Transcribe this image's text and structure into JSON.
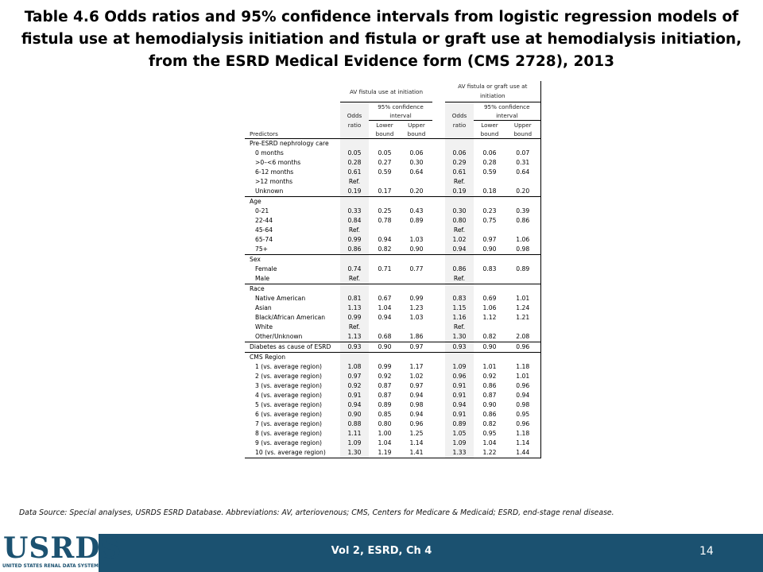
{
  "title": "Table 4.6  Odds ratios and 95% confidence intervals from logistic regression models of fistula use at hemodialysis initiation and fistula or graft use at hemodialysis initiation, from the ESRD Medical Evidence form (CMS 2728), 2013",
  "table": {
    "group1": "AV fistula use at initiation",
    "group2": "AV fistula or graft use at initiation",
    "ci_label_1": "95% confidence",
    "ci_label_2": "interval",
    "odds_1": "Odds",
    "odds_2": "ratio",
    "predictors": "Predictors",
    "lower_1": "Lower",
    "lower_2": "bound",
    "upper_1": "Upper",
    "upper_2": "bound",
    "rows": [
      {
        "label": "Pre-ESRD nephrology care",
        "type": "group",
        "v": [
          "",
          "",
          "",
          "",
          "",
          ""
        ]
      },
      {
        "label": "0 months",
        "type": "item",
        "v": [
          "0.05",
          "0.05",
          "0.06",
          "0.06",
          "0.06",
          "0.07"
        ]
      },
      {
        "label": ">0–<6 months",
        "type": "item",
        "v": [
          "0.28",
          "0.27",
          "0.30",
          "0.29",
          "0.28",
          "0.31"
        ]
      },
      {
        "label": "6-12 months",
        "type": "item",
        "v": [
          "0.61",
          "0.59",
          "0.64",
          "0.61",
          "0.59",
          "0.64"
        ]
      },
      {
        "label": ">12 months",
        "type": "item",
        "v": [
          "Ref.",
          "",
          "",
          "Ref.",
          "",
          ""
        ]
      },
      {
        "label": "Unknown",
        "type": "item",
        "v": [
          "0.19",
          "0.17",
          "0.20",
          "0.19",
          "0.18",
          "0.20"
        ]
      },
      {
        "label": "Age",
        "type": "group",
        "v": [
          "",
          "",
          "",
          "",
          "",
          ""
        ]
      },
      {
        "label": "0-21",
        "type": "item",
        "v": [
          "0.33",
          "0.25",
          "0.43",
          "0.30",
          "0.23",
          "0.39"
        ]
      },
      {
        "label": "22-44",
        "type": "item",
        "v": [
          "0.84",
          "0.78",
          "0.89",
          "0.80",
          "0.75",
          "0.86"
        ]
      },
      {
        "label": "45-64",
        "type": "item",
        "v": [
          "Ref.",
          "",
          "",
          "Ref.",
          "",
          ""
        ]
      },
      {
        "label": "65-74",
        "type": "item",
        "v": [
          "0.99",
          "0.94",
          "1.03",
          "1.02",
          "0.97",
          "1.06"
        ]
      },
      {
        "label": "75+",
        "type": "item",
        "v": [
          "0.86",
          "0.82",
          "0.90",
          "0.94",
          "0.90",
          "0.98"
        ]
      },
      {
        "label": "Sex",
        "type": "group",
        "v": [
          "",
          "",
          "",
          "",
          "",
          ""
        ]
      },
      {
        "label": "Female",
        "type": "item",
        "v": [
          "0.74",
          "0.71",
          "0.77",
          "0.86",
          "0.83",
          "0.89"
        ]
      },
      {
        "label": "Male",
        "type": "item",
        "v": [
          "Ref.",
          "",
          "",
          "Ref.",
          "",
          ""
        ]
      },
      {
        "label": "Race",
        "type": "group",
        "v": [
          "",
          "",
          "",
          "",
          "",
          ""
        ]
      },
      {
        "label": "Native American",
        "type": "item",
        "v": [
          "0.81",
          "0.67",
          "0.99",
          "0.83",
          "0.69",
          "1.01"
        ]
      },
      {
        "label": "Asian",
        "type": "item",
        "v": [
          "1.13",
          "1.04",
          "1.23",
          "1.15",
          "1.06",
          "1.24"
        ]
      },
      {
        "label": "Black/African American",
        "type": "item",
        "v": [
          "0.99",
          "0.94",
          "1.03",
          "1.16",
          "1.12",
          "1.21"
        ]
      },
      {
        "label": "White",
        "type": "item",
        "v": [
          "Ref.",
          "",
          "",
          "Ref.",
          "",
          ""
        ]
      },
      {
        "label": "Other/Unknown",
        "type": "item",
        "v": [
          "1.13",
          "0.68",
          "1.86",
          "1.30",
          "0.82",
          "2.08"
        ]
      },
      {
        "label": "Diabetes as cause of ESRD",
        "type": "group",
        "v": [
          "0.93",
          "0.90",
          "0.97",
          "0.93",
          "0.90",
          "0.96"
        ]
      },
      {
        "label": "CMS Region",
        "type": "group",
        "v": [
          "",
          "",
          "",
          "",
          "",
          ""
        ]
      },
      {
        "label": "1 (vs. average region)",
        "type": "item",
        "v": [
          "1.08",
          "0.99",
          "1.17",
          "1.09",
          "1.01",
          "1.18"
        ]
      },
      {
        "label": "2 (vs. average region)",
        "type": "item",
        "v": [
          "0.97",
          "0.92",
          "1.02",
          "0.96",
          "0.92",
          "1.01"
        ]
      },
      {
        "label": "3 (vs. average region)",
        "type": "item",
        "v": [
          "0.92",
          "0.87",
          "0.97",
          "0.91",
          "0.86",
          "0.96"
        ]
      },
      {
        "label": "4 (vs. average region)",
        "type": "item",
        "v": [
          "0.91",
          "0.87",
          "0.94",
          "0.91",
          "0.87",
          "0.94"
        ]
      },
      {
        "label": "5 (vs. average region)",
        "type": "item",
        "v": [
          "0.94",
          "0.89",
          "0.98",
          "0.94",
          "0.90",
          "0.98"
        ]
      },
      {
        "label": "6 (vs. average region)",
        "type": "item",
        "v": [
          "0.90",
          "0.85",
          "0.94",
          "0.91",
          "0.86",
          "0.95"
        ]
      },
      {
        "label": "7 (vs. average region)",
        "type": "item",
        "v": [
          "0.88",
          "0.80",
          "0.96",
          "0.89",
          "0.82",
          "0.96"
        ]
      },
      {
        "label": "8 (vs. average region)",
        "type": "item",
        "v": [
          "1.11",
          "1.00",
          "1.25",
          "1.05",
          "0.95",
          "1.18"
        ]
      },
      {
        "label": "9 (vs. average region)",
        "type": "item",
        "v": [
          "1.09",
          "1.04",
          "1.14",
          "1.09",
          "1.04",
          "1.14"
        ]
      },
      {
        "label": "10 (vs. average region)",
        "type": "item",
        "v": [
          "1.30",
          "1.19",
          "1.41",
          "1.33",
          "1.22",
          "1.44"
        ]
      }
    ]
  },
  "source": "Data Source: Special analyses,  USRDS ESRD Database. Abbreviations: AV, arteriovenous; CMS, Centers for Medicare & Medicaid; ESRD, end-stage renal disease.",
  "footer": {
    "label": "Vol 2, ESRD, Ch 4",
    "page": "14",
    "logo_text": "USRDS",
    "logo_sub": "UNITED STATES RENAL DATA SYSTEM",
    "color": "#1b5170"
  }
}
